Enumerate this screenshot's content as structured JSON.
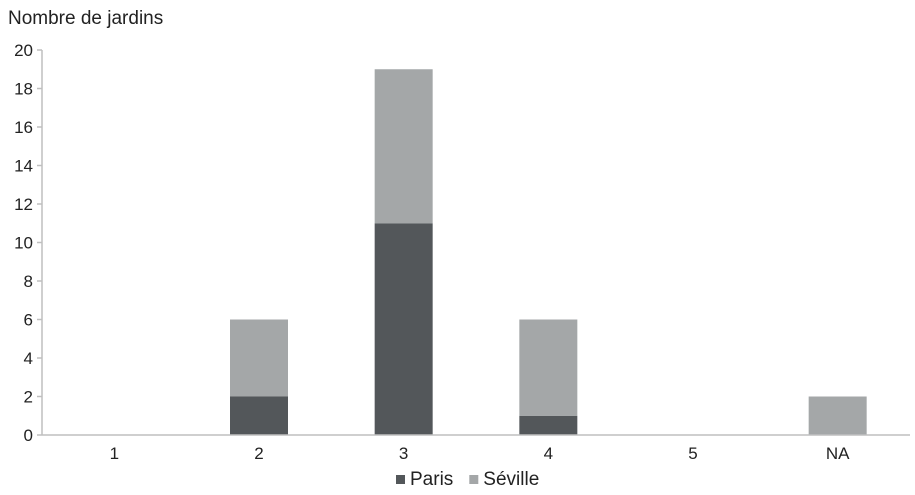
{
  "chart_data": {
    "type": "bar",
    "stacked": true,
    "ylabel": "Nombre de jardins",
    "categories": [
      "1",
      "2",
      "3",
      "4",
      "5",
      "NA"
    ],
    "series": [
      {
        "name": "Paris",
        "values": [
          0,
          2,
          11,
          1,
          0,
          0
        ]
      },
      {
        "name": "Séville",
        "values": [
          0,
          4,
          8,
          5,
          0,
          2
        ]
      }
    ],
    "ylim": [
      0,
      20
    ],
    "yticks": [
      0,
      2,
      4,
      6,
      8,
      10,
      12,
      14,
      16,
      18,
      20
    ],
    "grid": false,
    "legend_position": "bottom"
  },
  "colors": {
    "Paris": "#53575a",
    "Séville": "#a4a7a8",
    "axis": "#bfbfbf"
  }
}
